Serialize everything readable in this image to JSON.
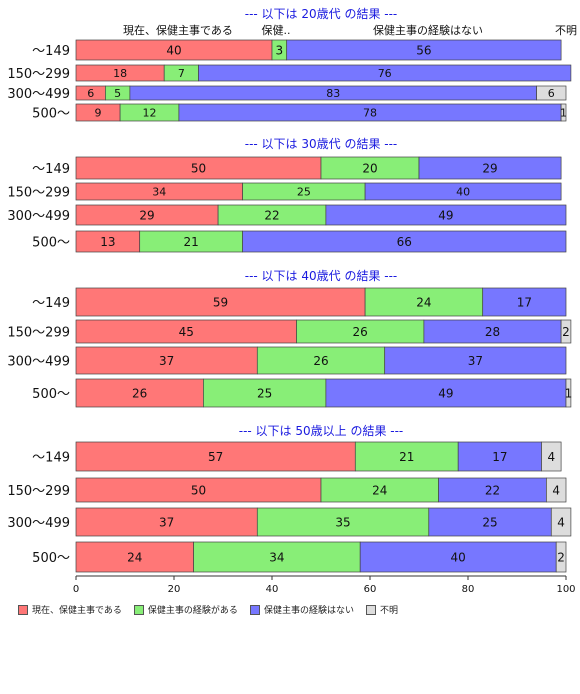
{
  "chart_data": {
    "type": "bar",
    "orientation": "horizontal",
    "stacked": true,
    "xlim": [
      0,
      100
    ],
    "xticks": [
      0,
      20,
      40,
      60,
      80,
      100
    ],
    "categories": [
      "～149",
      "150～299",
      "300～499",
      "500～"
    ],
    "series_names": [
      "現在、保健主事である",
      "保健主事の経験がある",
      "保健主事の経験はない",
      "不明"
    ],
    "colors": [
      "#ff7777",
      "#88ee77",
      "#7777ff",
      "#dddddd"
    ],
    "header_labels": [
      "現在、保健主事である",
      "保健..",
      "保健主事の経験はない",
      "不明"
    ],
    "panels": [
      {
        "title": "--- 以下は 20歳代 の結果 ---",
        "values": [
          [
            40,
            3,
            56,
            0
          ],
          [
            18,
            7,
            76,
            0
          ],
          [
            6,
            5,
            83,
            6
          ],
          [
            9,
            12,
            78,
            1
          ]
        ]
      },
      {
        "title": "--- 以下は 30歳代 の結果 ---",
        "values": [
          [
            50,
            20,
            29,
            0
          ],
          [
            34,
            25,
            40,
            0
          ],
          [
            29,
            22,
            49,
            0
          ],
          [
            13,
            21,
            66,
            0
          ]
        ]
      },
      {
        "title": "--- 以下は 40歳代 の結果 ---",
        "values": [
          [
            59,
            24,
            17,
            0
          ],
          [
            45,
            26,
            28,
            2
          ],
          [
            37,
            26,
            37,
            0
          ],
          [
            26,
            25,
            49,
            1
          ]
        ]
      },
      {
        "title": "--- 以下は 50歳以上 の結果 ---",
        "values": [
          [
            57,
            21,
            17,
            4
          ],
          [
            50,
            24,
            22,
            4
          ],
          [
            37,
            35,
            25,
            4
          ],
          [
            24,
            34,
            40,
            2
          ]
        ]
      }
    ]
  },
  "legend": {
    "items": [
      "現在、保健主事である",
      "保健主事の経験がある",
      "保健主事の経験はない",
      "不明"
    ]
  }
}
